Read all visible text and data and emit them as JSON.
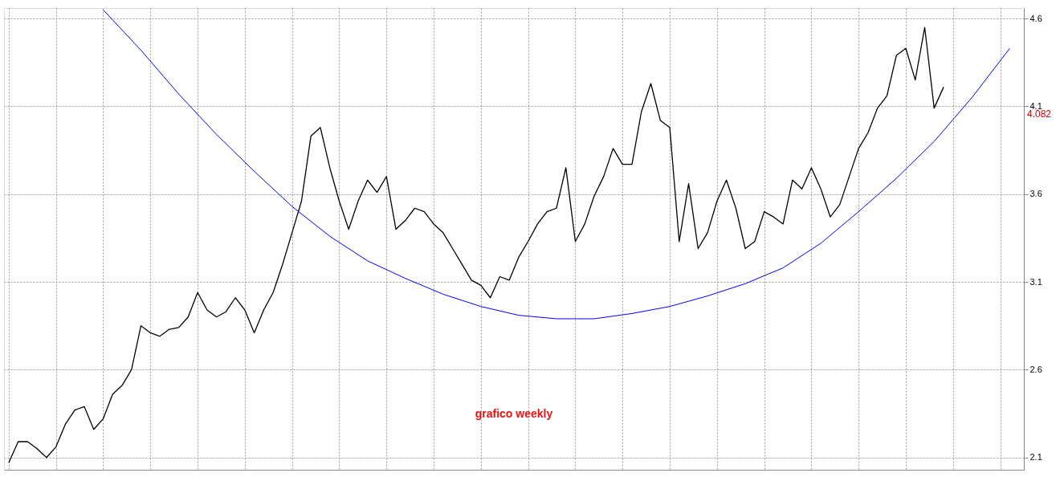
{
  "chart_data": {
    "type": "line",
    "categories": [
      null,
      null,
      null,
      null,
      null,
      null,
      null,
      null,
      null,
      null,
      null,
      null,
      null,
      null,
      null,
      null,
      null,
      null,
      null,
      null,
      null,
      null,
      null,
      null,
      null,
      null,
      null,
      null,
      null,
      null,
      null,
      null,
      null,
      null,
      null,
      null,
      null,
      null,
      null,
      null,
      null,
      null,
      null,
      null,
      null,
      null,
      null,
      null,
      null,
      null,
      null,
      null,
      null,
      null,
      null,
      null,
      null,
      null,
      null,
      null,
      null,
      null,
      null,
      null,
      null,
      null,
      null,
      null,
      null,
      null,
      null,
      null,
      null,
      null,
      null,
      null,
      null,
      null,
      null,
      null,
      null,
      null,
      null,
      null,
      null,
      null,
      null,
      null,
      null,
      null,
      null,
      null,
      null,
      null,
      null,
      null,
      null,
      null,
      null,
      null,
      null,
      null,
      null,
      null,
      null,
      null,
      null,
      null
    ],
    "ylim": [
      2.03,
      4.66
    ],
    "yticks": [
      2.1,
      2.6,
      3.1,
      3.6,
      4.1,
      4.6
    ],
    "grid": true,
    "marker": "none",
    "line_style": "solid",
    "series": [
      {
        "color": "#000000",
        "values": [
          2.07,
          2.19,
          2.19,
          2.15,
          2.1,
          2.16,
          2.29,
          2.37,
          2.39,
          2.26,
          2.32,
          2.46,
          2.51,
          2.6,
          2.85,
          2.81,
          2.79,
          2.83,
          2.84,
          2.9,
          3.04,
          2.94,
          2.9,
          2.93,
          3.01,
          2.94,
          2.81,
          2.94,
          3.04,
          3.2,
          3.38,
          3.56,
          3.93,
          3.98,
          3.75,
          3.56,
          3.4,
          3.56,
          3.68,
          3.61,
          3.7,
          3.4,
          3.45,
          3.52,
          3.5,
          3.43,
          3.38,
          3.29,
          3.2,
          3.11,
          3.08,
          3.01,
          3.13,
          3.11,
          3.24,
          3.33,
          3.43,
          3.5,
          3.52,
          3.75,
          3.33,
          3.43,
          3.59,
          3.7,
          3.86,
          3.77,
          3.77,
          4.07,
          4.23,
          4.02,
          3.98,
          3.33,
          3.66,
          3.29,
          3.38,
          3.56,
          3.68,
          3.52,
          3.29,
          3.33,
          3.5,
          3.47,
          3.43,
          3.68,
          3.63,
          3.75,
          3.63,
          3.47,
          3.54,
          3.7,
          3.86,
          3.95,
          4.09,
          4.16,
          4.39,
          4.43,
          4.25,
          4.55,
          4.09,
          4.21,
          null,
          null,
          null,
          null,
          null,
          null,
          null,
          null
        ]
      },
      {
        "color": "#0000ff",
        "values": [
          null,
          null,
          null,
          null,
          null,
          null,
          null,
          null,
          null,
          null,
          4.65,
          null,
          null,
          null,
          4.42,
          null,
          null,
          null,
          4.17,
          null,
          null,
          null,
          3.94,
          null,
          null,
          null,
          3.73,
          null,
          null,
          null,
          3.53,
          null,
          null,
          null,
          3.36,
          null,
          null,
          null,
          3.22,
          null,
          null,
          null,
          3.12,
          null,
          null,
          null,
          3.03,
          null,
          null,
          null,
          2.96,
          null,
          null,
          null,
          2.91,
          null,
          null,
          null,
          2.89,
          null,
          null,
          null,
          2.89,
          null,
          null,
          null,
          2.92,
          null,
          null,
          null,
          2.96,
          null,
          null,
          null,
          3.02,
          null,
          null,
          null,
          3.09,
          null,
          null,
          null,
          3.18,
          null,
          null,
          null,
          3.32,
          null,
          null,
          null,
          3.5,
          null,
          null,
          null,
          3.69,
          null,
          null,
          null,
          3.9,
          null,
          null,
          null,
          4.15,
          null,
          null,
          null,
          4.43,
          null
        ]
      }
    ],
    "annotations": [
      "grafico weekly",
      "4.082"
    ]
  }
}
